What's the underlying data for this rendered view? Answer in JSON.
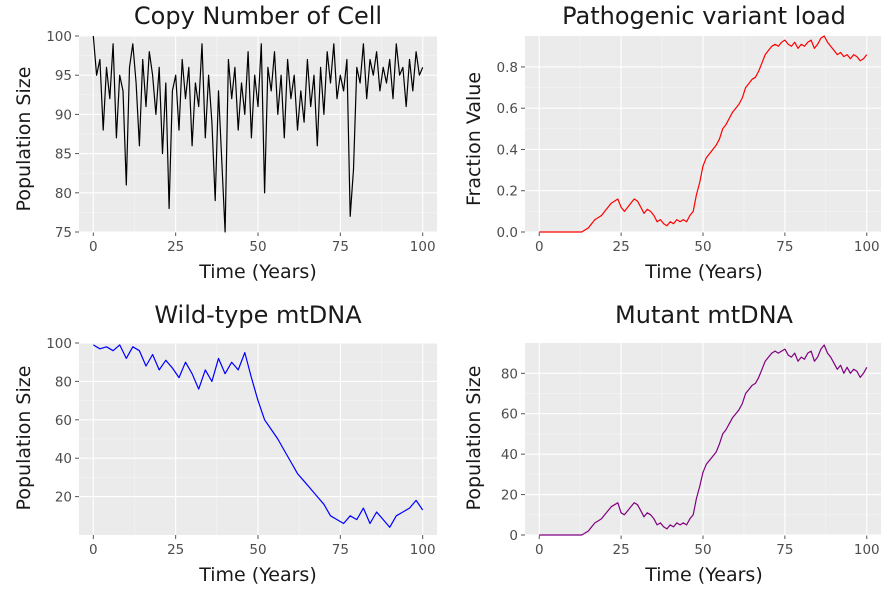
{
  "chart_data": [
    {
      "type": "line",
      "title": "Copy Number of Cell",
      "xlabel": "Time (Years)",
      "ylabel": "Population Size",
      "xlim": [
        0,
        100
      ],
      "ylim": [
        75,
        100
      ],
      "xticks": [
        0,
        25,
        50,
        75,
        100
      ],
      "yticks": [
        75,
        80,
        85,
        90,
        95,
        100
      ],
      "grid": true,
      "color": "#000000",
      "series": [
        {
          "x": [
            0,
            1,
            2,
            3,
            4,
            5,
            6,
            7,
            8,
            9,
            10,
            11,
            12,
            13,
            14,
            15,
            16,
            17,
            18,
            19,
            20,
            21,
            22,
            23,
            24,
            25,
            26,
            27,
            28,
            29,
            30,
            31,
            32,
            33,
            34,
            35,
            36,
            37,
            38,
            39,
            40,
            41,
            42,
            43,
            44,
            45,
            46,
            47,
            48,
            49,
            50,
            51,
            52,
            53,
            54,
            55,
            56,
            57,
            58,
            59,
            60,
            61,
            62,
            63,
            64,
            65,
            66,
            67,
            68,
            69,
            70,
            71,
            72,
            73,
            74,
            75,
            76,
            77,
            78,
            79,
            80,
            81,
            82,
            83,
            84,
            85,
            86,
            87,
            88,
            89,
            90,
            91,
            92,
            93,
            94,
            95,
            96,
            97,
            98,
            99,
            100
          ],
          "values": [
            100,
            95,
            97,
            88,
            96,
            92,
            99,
            87,
            95,
            93,
            81,
            96,
            99,
            94,
            86,
            97,
            91,
            98,
            95,
            90,
            96,
            85,
            94,
            78,
            93,
            95,
            88,
            97,
            92,
            96,
            86,
            94,
            91,
            99,
            87,
            95,
            89,
            79,
            93,
            84,
            75,
            97,
            92,
            96,
            88,
            94,
            90,
            98,
            87,
            95,
            91,
            99,
            80,
            96,
            93,
            98,
            90,
            95,
            87,
            97,
            92,
            95,
            88,
            93,
            89,
            97,
            91,
            95,
            86,
            96,
            90,
            98,
            94,
            99,
            92,
            95,
            93,
            97,
            77,
            83,
            96,
            94,
            99,
            92,
            97,
            95,
            98,
            93,
            96,
            94,
            97,
            92,
            99,
            95,
            96,
            91,
            97,
            93,
            98,
            95,
            96
          ]
        }
      ]
    },
    {
      "type": "line",
      "title": "Pathogenic variant load",
      "xlabel": "Time (Years)",
      "ylabel": "Fraction Value",
      "xlim": [
        0,
        100
      ],
      "ylim": [
        0,
        0.95
      ],
      "xticks": [
        0,
        25,
        50,
        75,
        100
      ],
      "yticks": [
        0.0,
        0.2,
        0.4,
        0.6,
        0.8
      ],
      "grid": true,
      "color": "#ff0000",
      "series": [
        {
          "x": [
            0,
            13,
            14,
            15,
            16,
            17,
            18,
            19,
            20,
            21,
            22,
            23,
            24,
            25,
            26,
            27,
            28,
            29,
            30,
            31,
            32,
            33,
            34,
            35,
            36,
            37,
            38,
            39,
            40,
            41,
            42,
            43,
            44,
            45,
            46,
            47,
            48,
            49,
            50,
            51,
            52,
            53,
            54,
            55,
            56,
            57,
            58,
            59,
            60,
            61,
            62,
            63,
            64,
            65,
            66,
            67,
            68,
            69,
            70,
            71,
            72,
            73,
            74,
            75,
            76,
            77,
            78,
            79,
            80,
            81,
            82,
            83,
            84,
            85,
            86,
            87,
            88,
            89,
            90,
            91,
            92,
            93,
            94,
            95,
            96,
            97,
            98,
            99,
            100
          ],
          "values": [
            0.0,
            0.0,
            0.01,
            0.02,
            0.04,
            0.06,
            0.07,
            0.08,
            0.1,
            0.12,
            0.14,
            0.15,
            0.16,
            0.12,
            0.1,
            0.12,
            0.14,
            0.16,
            0.15,
            0.12,
            0.09,
            0.11,
            0.1,
            0.08,
            0.05,
            0.06,
            0.04,
            0.03,
            0.05,
            0.04,
            0.06,
            0.05,
            0.06,
            0.05,
            0.08,
            0.1,
            0.18,
            0.24,
            0.32,
            0.36,
            0.38,
            0.4,
            0.42,
            0.45,
            0.5,
            0.52,
            0.55,
            0.58,
            0.6,
            0.62,
            0.65,
            0.7,
            0.72,
            0.74,
            0.75,
            0.78,
            0.82,
            0.86,
            0.88,
            0.9,
            0.91,
            0.9,
            0.92,
            0.93,
            0.91,
            0.9,
            0.92,
            0.89,
            0.91,
            0.9,
            0.92,
            0.93,
            0.89,
            0.91,
            0.94,
            0.95,
            0.92,
            0.9,
            0.88,
            0.86,
            0.87,
            0.85,
            0.86,
            0.84,
            0.86,
            0.85,
            0.83,
            0.84,
            0.86
          ]
        }
      ]
    },
    {
      "type": "line",
      "title": "Wild-type mtDNA",
      "xlabel": "Time (Years)",
      "ylabel": "Population Size",
      "xlim": [
        0,
        100
      ],
      "ylim": [
        0,
        100
      ],
      "xticks": [
        0,
        25,
        50,
        75,
        100
      ],
      "yticks": [
        20,
        40,
        60,
        80,
        100
      ],
      "grid": true,
      "color": "#0000ff",
      "series": [
        {
          "x": [
            0,
            2,
            4,
            6,
            8,
            10,
            12,
            14,
            16,
            18,
            20,
            22,
            24,
            26,
            28,
            30,
            32,
            34,
            36,
            38,
            40,
            42,
            44,
            46,
            48,
            50,
            52,
            54,
            56,
            58,
            60,
            62,
            64,
            66,
            68,
            70,
            72,
            74,
            76,
            78,
            80,
            82,
            84,
            86,
            88,
            90,
            92,
            94,
            96,
            98,
            100
          ],
          "values": [
            99,
            97,
            98,
            96,
            99,
            92,
            98,
            96,
            88,
            94,
            86,
            91,
            87,
            82,
            90,
            84,
            76,
            86,
            80,
            92,
            84,
            90,
            86,
            95,
            82,
            70,
            60,
            55,
            50,
            44,
            38,
            32,
            28,
            24,
            20,
            16,
            10,
            8,
            6,
            10,
            8,
            14,
            6,
            12,
            8,
            4,
            10,
            12,
            14,
            18,
            13
          ]
        }
      ]
    },
    {
      "type": "line",
      "title": "Mutant mtDNA",
      "xlabel": "Time (Years)",
      "ylabel": "Population Size",
      "xlim": [
        0,
        100
      ],
      "ylim": [
        0,
        95
      ],
      "xticks": [
        0,
        25,
        50,
        75,
        100
      ],
      "yticks": [
        0,
        20,
        40,
        60,
        80
      ],
      "grid": true,
      "color": "#800080",
      "series": [
        {
          "x": [
            0,
            13,
            14,
            15,
            16,
            17,
            18,
            19,
            20,
            21,
            22,
            23,
            24,
            25,
            26,
            27,
            28,
            29,
            30,
            31,
            32,
            33,
            34,
            35,
            36,
            37,
            38,
            39,
            40,
            41,
            42,
            43,
            44,
            45,
            46,
            47,
            48,
            49,
            50,
            51,
            52,
            53,
            54,
            55,
            56,
            57,
            58,
            59,
            60,
            61,
            62,
            63,
            64,
            65,
            66,
            67,
            68,
            69,
            70,
            71,
            72,
            73,
            74,
            75,
            76,
            77,
            78,
            79,
            80,
            81,
            82,
            83,
            84,
            85,
            86,
            87,
            88,
            89,
            90,
            91,
            92,
            93,
            94,
            95,
            96,
            97,
            98,
            99,
            100
          ],
          "values": [
            0,
            0,
            1,
            2,
            4,
            6,
            7,
            8,
            10,
            12,
            14,
            15,
            16,
            11,
            10,
            12,
            14,
            16,
            15,
            12,
            9,
            11,
            10,
            8,
            5,
            6,
            4,
            3,
            5,
            4,
            6,
            5,
            6,
            5,
            8,
            10,
            18,
            24,
            31,
            35,
            37,
            39,
            41,
            45,
            50,
            52,
            55,
            58,
            60,
            62,
            65,
            70,
            72,
            74,
            75,
            78,
            82,
            86,
            88,
            90,
            91,
            90,
            91,
            92,
            89,
            88,
            90,
            86,
            88,
            87,
            90,
            91,
            86,
            88,
            92,
            94,
            90,
            88,
            85,
            82,
            84,
            80,
            83,
            80,
            82,
            81,
            78,
            80,
            83
          ]
        }
      ]
    }
  ]
}
